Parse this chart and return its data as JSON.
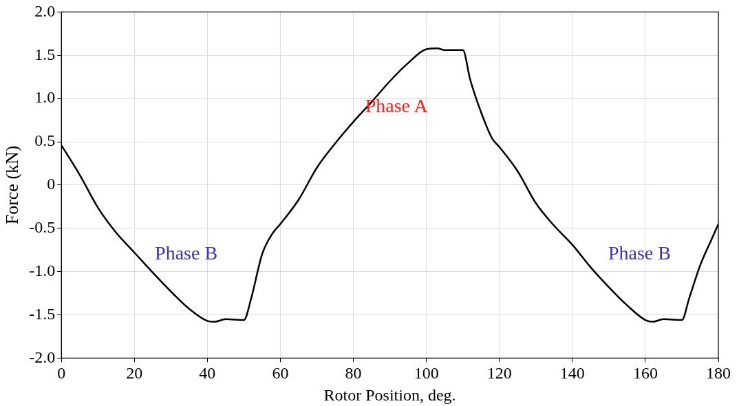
{
  "chart_data": {
    "type": "line",
    "xlabel": "Rotor Position, deg.",
    "ylabel": "Force (kN)",
    "x": [
      0,
      5,
      10,
      15,
      20,
      25,
      30,
      35,
      40,
      42,
      45,
      50,
      52,
      55,
      58,
      60,
      65,
      70,
      75,
      80,
      85,
      90,
      95,
      100,
      103,
      105,
      110,
      112,
      115,
      118,
      120,
      125,
      130,
      135,
      140,
      145,
      150,
      155,
      160,
      162,
      165,
      170,
      172,
      175,
      178,
      180
    ],
    "series": [
      {
        "color": "#000000",
        "values": [
          0.46,
          0.12,
          -0.26,
          -0.55,
          -0.78,
          -1.01,
          -1.23,
          -1.43,
          -1.57,
          -1.58,
          -1.55,
          -1.56,
          -1.31,
          -0.8,
          -0.55,
          -0.45,
          -0.17,
          0.2,
          0.48,
          0.73,
          0.96,
          1.2,
          1.41,
          1.57,
          1.58,
          1.56,
          1.56,
          1.22,
          0.84,
          0.54,
          0.44,
          0.16,
          -0.21,
          -0.47,
          -0.69,
          -0.95,
          -1.18,
          -1.39,
          -1.56,
          -1.58,
          -1.55,
          -1.56,
          -1.31,
          -0.93,
          -0.64,
          -0.45
        ]
      }
    ],
    "xlim": [
      0,
      180
    ],
    "xticks": [
      0,
      20,
      40,
      60,
      80,
      100,
      120,
      140,
      160,
      180
    ],
    "ylim": [
      -2,
      2
    ],
    "yticks": [
      {
        "value": -2,
        "label": "-2.0"
      },
      {
        "value": -1.5,
        "label": "-1.5"
      },
      {
        "value": -1,
        "label": "-1.0"
      },
      {
        "value": -0.5,
        "label": "-0.5"
      },
      0,
      {
        "value": 0.5,
        "label": "0.5"
      },
      {
        "value": 1,
        "label": "1.0"
      },
      {
        "value": 1.5,
        "label": "1.5"
      },
      {
        "value": 2,
        "label": "2.0"
      }
    ],
    "annotations": [
      "Phase A",
      "Phase B",
      "Phase B"
    ],
    "grid": true,
    "legend": false,
    "marker": "none",
    "line_style": "solid"
  }
}
